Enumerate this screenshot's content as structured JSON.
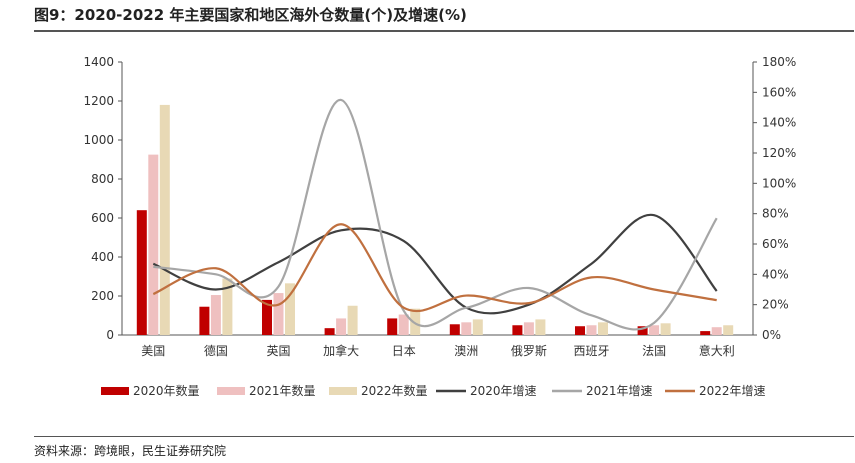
{
  "title": "图9：2020-2022 年主要国家和地区海外仓数量(个)及增速(%)",
  "source": "资料来源：跨境眼，民生证券研究院",
  "chart_data": {
    "type": "bar",
    "categories": [
      "美国",
      "德国",
      "英国",
      "加拿大",
      "日本",
      "澳洲",
      "俄罗斯",
      "西班牙",
      "法国",
      "意大利"
    ],
    "bar_series": [
      {
        "name": "2020年数量",
        "color": "#c00000",
        "values": [
          640,
          145,
          180,
          35,
          85,
          55,
          50,
          45,
          45,
          20
        ]
      },
      {
        "name": "2021年数量",
        "color": "#efc0c0",
        "values": [
          925,
          205,
          215,
          85,
          105,
          65,
          65,
          50,
          50,
          40
        ]
      },
      {
        "name": "2022年数量",
        "color": "#e8d9b5",
        "values": [
          1180,
          290,
          265,
          150,
          135,
          80,
          80,
          65,
          60,
          50
        ]
      }
    ],
    "line_series": [
      {
        "name": "2020年增速",
        "color": "#404040",
        "values": [
          47,
          30,
          48,
          69,
          62,
          18,
          20,
          47,
          79,
          29
        ]
      },
      {
        "name": "2021年增速",
        "color": "#a6a6a6",
        "values": [
          45,
          40,
          32,
          155,
          16,
          18,
          31,
          13,
          8,
          77
        ]
      },
      {
        "name": "2022年增速",
        "color": "#c0703f",
        "values": [
          27,
          44,
          20,
          73,
          18,
          26,
          21,
          38,
          30,
          23
        ]
      }
    ],
    "y_left": {
      "min": 0,
      "max": 1400,
      "ticks": [
        0,
        200,
        400,
        600,
        800,
        1000,
        1200,
        1400
      ],
      "tick_labels": [
        "0",
        "200",
        "400",
        "600",
        "800",
        "1000",
        "1200",
        "1400"
      ]
    },
    "y_right": {
      "min": 0,
      "max": 180,
      "ticks": [
        0,
        20,
        40,
        60,
        80,
        100,
        120,
        140,
        160,
        180
      ],
      "tick_labels": [
        "0%",
        "20%",
        "40%",
        "60%",
        "80%",
        "100%",
        "120%",
        "140%",
        "160%",
        "180%"
      ]
    },
    "legend_position": "bottom",
    "grid": false
  }
}
